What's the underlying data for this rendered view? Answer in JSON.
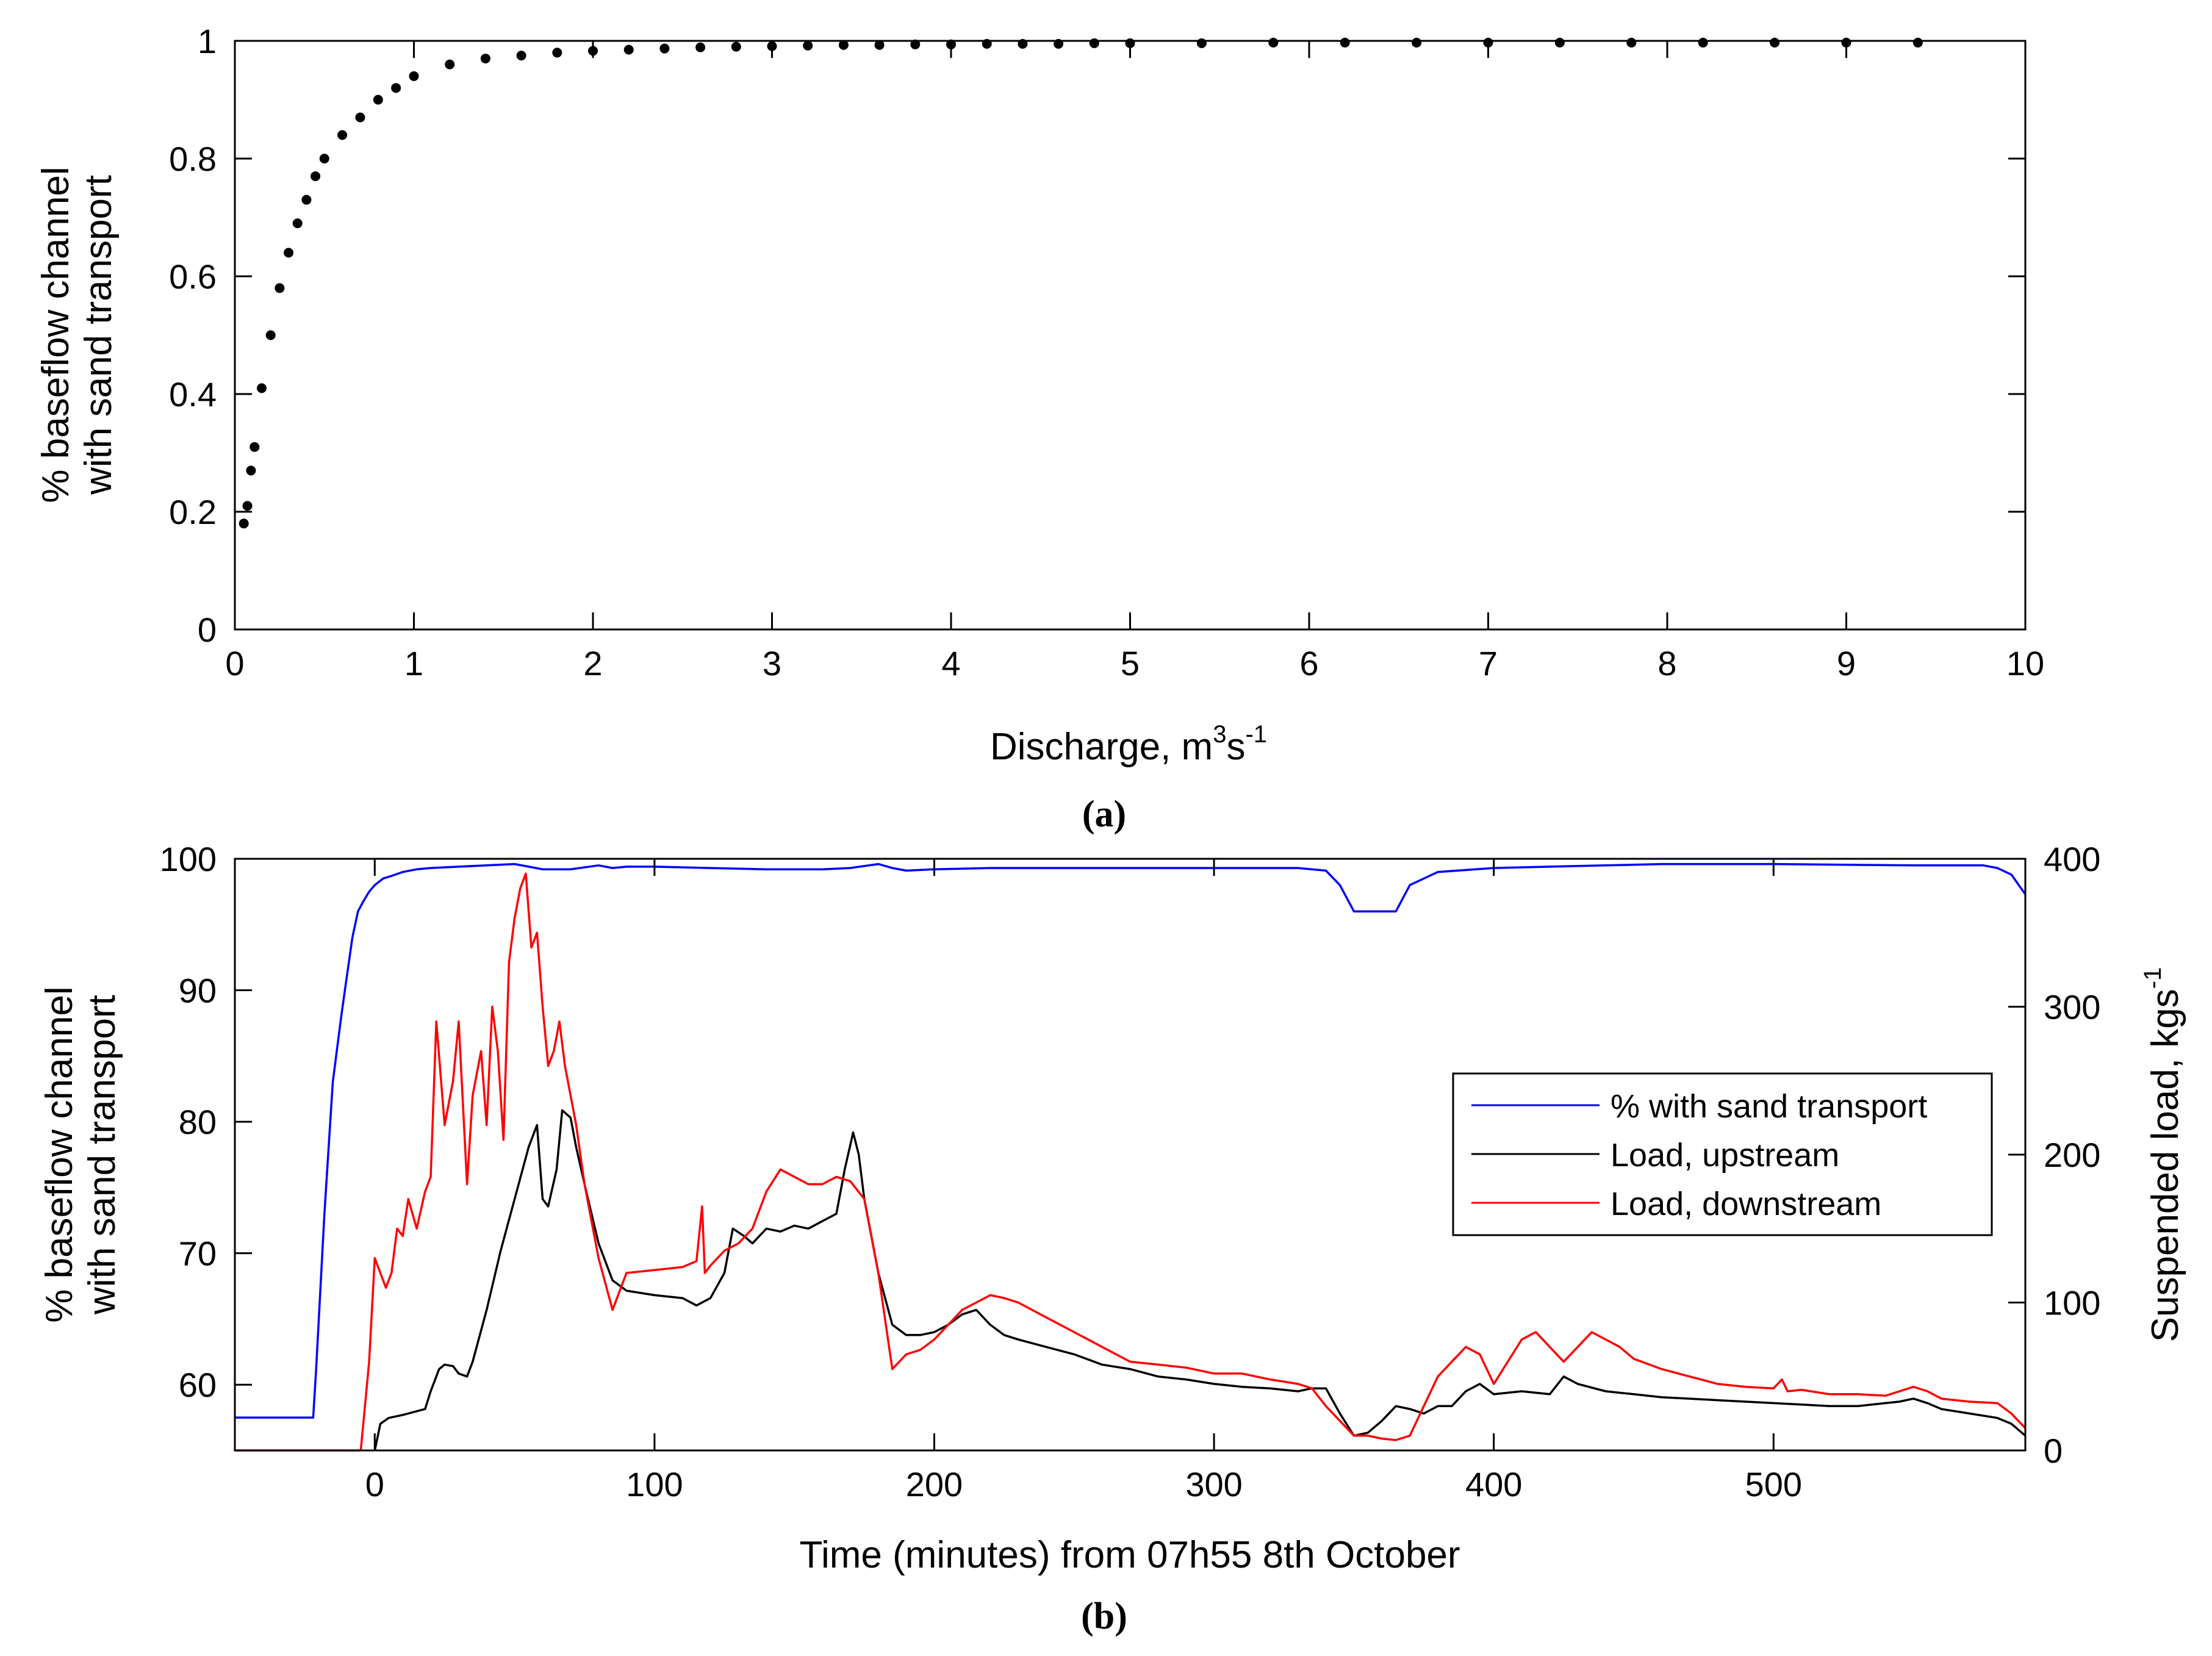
{
  "chart_data": [
    {
      "id": "a",
      "type": "scatter",
      "panel_label": "(a)",
      "xlabel_main": "Discharge, m",
      "xlabel_sup1": "3",
      "xlabel_mid": "s",
      "xlabel_sup2": "-1",
      "ylabel_line1": "% baseflow channel",
      "ylabel_line2": "with sand transport",
      "xlim": [
        0,
        10
      ],
      "ylim": [
        0,
        1
      ],
      "xticks": [
        0,
        1,
        2,
        3,
        4,
        5,
        6,
        7,
        8,
        9,
        10
      ],
      "yticks": [
        0,
        0.2,
        0.4,
        0.6,
        0.8,
        1
      ],
      "grid": false,
      "point_color": "#000000",
      "series": [
        {
          "name": "points",
          "x": [
            0.05,
            0.07,
            0.09,
            0.11,
            0.15,
            0.2,
            0.25,
            0.3,
            0.35,
            0.4,
            0.45,
            0.5,
            0.6,
            0.7,
            0.8,
            0.9,
            1.0,
            1.2,
            1.4,
            1.6,
            1.8,
            2.0,
            2.2,
            2.4,
            2.6,
            2.8,
            3.0,
            3.2,
            3.4,
            3.6,
            3.8,
            4.0,
            4.2,
            4.4,
            4.6,
            4.8,
            5.0,
            5.4,
            5.8,
            6.2,
            6.6,
            7.0,
            7.4,
            7.8,
            8.2,
            8.6,
            9.0,
            9.4
          ],
          "y": [
            0.18,
            0.21,
            0.27,
            0.31,
            0.41,
            0.5,
            0.58,
            0.64,
            0.69,
            0.73,
            0.77,
            0.8,
            0.84,
            0.87,
            0.9,
            0.92,
            0.94,
            0.96,
            0.97,
            0.975,
            0.98,
            0.983,
            0.985,
            0.987,
            0.989,
            0.99,
            0.991,
            0.992,
            0.993,
            0.993,
            0.994,
            0.994,
            0.995,
            0.995,
            0.995,
            0.996,
            0.996,
            0.996,
            0.997,
            0.997,
            0.997,
            0.997,
            0.997,
            0.997,
            0.997,
            0.997,
            0.997,
            0.997
          ]
        }
      ]
    },
    {
      "id": "b",
      "type": "line",
      "panel_label": "(b)",
      "xlabel": "Time (minutes) from 07h55 8th October",
      "ylabel_left_line1": "% baseflow channel",
      "ylabel_left_line2": "with sand transport",
      "ylabel_right_main": "Suspended load, kgs",
      "ylabel_right_sup": "-1",
      "xlim": [
        -50,
        590
      ],
      "ylim_left": [
        55,
        100
      ],
      "ylim_right": [
        0,
        400
      ],
      "xticks": [
        0,
        100,
        200,
        300,
        400,
        500
      ],
      "yticks_left": [
        60,
        70,
        80,
        90,
        100
      ],
      "yticks_right": [
        0,
        100,
        200,
        300,
        400
      ],
      "grid": false,
      "legend_position": "right",
      "series": [
        {
          "name": "% with sand transport",
          "axis": "left",
          "color": "#0000ff",
          "x": [
            -50,
            -22,
            -21,
            -18,
            -15,
            -12,
            -10,
            -8,
            -6,
            -4,
            -2,
            0,
            3,
            6,
            10,
            15,
            20,
            30,
            40,
            50,
            55,
            60,
            70,
            80,
            85,
            90,
            100,
            120,
            140,
            160,
            170,
            180,
            185,
            190,
            200,
            220,
            250,
            300,
            330,
            340,
            345,
            350,
            365,
            370,
            380,
            400,
            420,
            440,
            460,
            500,
            550,
            575,
            580,
            585,
            590
          ],
          "y": [
            57.5,
            57.5,
            61.0,
            73.0,
            83.0,
            88.0,
            91.0,
            94.0,
            96.0,
            96.8,
            97.5,
            98.0,
            98.5,
            98.7,
            99.0,
            99.2,
            99.3,
            99.4,
            99.5,
            99.6,
            99.4,
            99.2,
            99.2,
            99.5,
            99.3,
            99.4,
            99.4,
            99.3,
            99.2,
            99.2,
            99.3,
            99.6,
            99.3,
            99.1,
            99.2,
            99.3,
            99.3,
            99.3,
            99.3,
            99.1,
            98.0,
            96.0,
            96.0,
            98.0,
            99.0,
            99.3,
            99.4,
            99.5,
            99.6,
            99.6,
            99.5,
            99.5,
            99.3,
            98.8,
            97.3
          ]
        },
        {
          "name": "Load, upstream",
          "axis": "right",
          "color": "#000000",
          "x": [
            0,
            2,
            5,
            10,
            18,
            20,
            23,
            25,
            28,
            30,
            33,
            35,
            40,
            45,
            50,
            55,
            58,
            60,
            62,
            65,
            67,
            70,
            72,
            75,
            80,
            85,
            90,
            100,
            110,
            115,
            120,
            125,
            128,
            132,
            135,
            140,
            145,
            150,
            155,
            160,
            165,
            168,
            171,
            173,
            175,
            180,
            185,
            190,
            195,
            200,
            205,
            210,
            215,
            220,
            225,
            230,
            240,
            250,
            260,
            270,
            280,
            290,
            300,
            310,
            320,
            330,
            335,
            340,
            345,
            350,
            355,
            360,
            365,
            370,
            375,
            380,
            385,
            390,
            395,
            400,
            410,
            420,
            425,
            430,
            440,
            450,
            460,
            470,
            480,
            490,
            500,
            510,
            520,
            530,
            540,
            545,
            550,
            555,
            560,
            570,
            580,
            585,
            590
          ],
          "y": [
            0,
            18,
            22,
            24,
            28,
            40,
            55,
            58,
            57,
            52,
            50,
            60,
            95,
            135,
            170,
            205,
            220,
            170,
            165,
            190,
            230,
            225,
            205,
            180,
            140,
            115,
            108,
            105,
            103,
            98,
            103,
            120,
            150,
            145,
            140,
            150,
            148,
            152,
            150,
            155,
            160,
            190,
            215,
            200,
            170,
            120,
            85,
            78,
            78,
            80,
            85,
            92,
            95,
            85,
            78,
            75,
            70,
            65,
            58,
            55,
            50,
            48,
            45,
            43,
            42,
            40,
            42,
            42,
            25,
            10,
            12,
            20,
            30,
            28,
            25,
            30,
            30,
            40,
            45,
            38,
            40,
            38,
            50,
            45,
            40,
            38,
            36,
            35,
            34,
            33,
            32,
            31,
            30,
            30,
            32,
            33,
            35,
            32,
            28,
            25,
            22,
            18,
            10
          ]
        },
        {
          "name": "Load, downstream",
          "axis": "right",
          "color": "#ff0000",
          "x": [
            -50,
            -5,
            -2,
            0,
            2,
            4,
            6,
            8,
            10,
            12,
            15,
            18,
            20,
            22,
            25,
            28,
            30,
            33,
            35,
            38,
            40,
            42,
            44,
            46,
            48,
            50,
            52,
            54,
            56,
            58,
            60,
            62,
            64,
            66,
            68,
            70,
            72,
            75,
            80,
            85,
            90,
            100,
            110,
            115,
            117,
            118,
            120,
            125,
            130,
            135,
            140,
            145,
            150,
            155,
            160,
            165,
            170,
            175,
            180,
            185,
            190,
            195,
            200,
            205,
            210,
            215,
            220,
            225,
            230,
            240,
            250,
            260,
            270,
            280,
            290,
            300,
            310,
            320,
            330,
            335,
            340,
            345,
            350,
            355,
            360,
            365,
            370,
            375,
            380,
            385,
            390,
            395,
            400,
            405,
            410,
            415,
            420,
            425,
            430,
            435,
            440,
            445,
            450,
            460,
            470,
            480,
            490,
            500,
            503,
            505,
            510,
            520,
            530,
            540,
            545,
            550,
            555,
            560,
            570,
            580,
            585,
            590
          ],
          "y": [
            0,
            0,
            60,
            130,
            120,
            110,
            120,
            150,
            145,
            170,
            150,
            175,
            185,
            290,
            220,
            250,
            290,
            180,
            240,
            270,
            220,
            300,
            270,
            210,
            330,
            360,
            380,
            390,
            340,
            350,
            300,
            260,
            270,
            290,
            260,
            240,
            220,
            180,
            130,
            95,
            120,
            122,
            124,
            128,
            165,
            120,
            125,
            135,
            140,
            150,
            175,
            190,
            185,
            180,
            180,
            185,
            182,
            170,
            120,
            55,
            65,
            68,
            75,
            85,
            95,
            100,
            105,
            103,
            100,
            90,
            80,
            70,
            60,
            58,
            56,
            52,
            52,
            48,
            45,
            42,
            30,
            20,
            10,
            10,
            8,
            7,
            10,
            30,
            50,
            60,
            70,
            65,
            45,
            60,
            75,
            80,
            70,
            60,
            70,
            80,
            75,
            70,
            62,
            55,
            50,
            45,
            43,
            42,
            48,
            40,
            41,
            38,
            38,
            37,
            40,
            43,
            40,
            35,
            33,
            32,
            25,
            15
          ]
        }
      ]
    }
  ]
}
